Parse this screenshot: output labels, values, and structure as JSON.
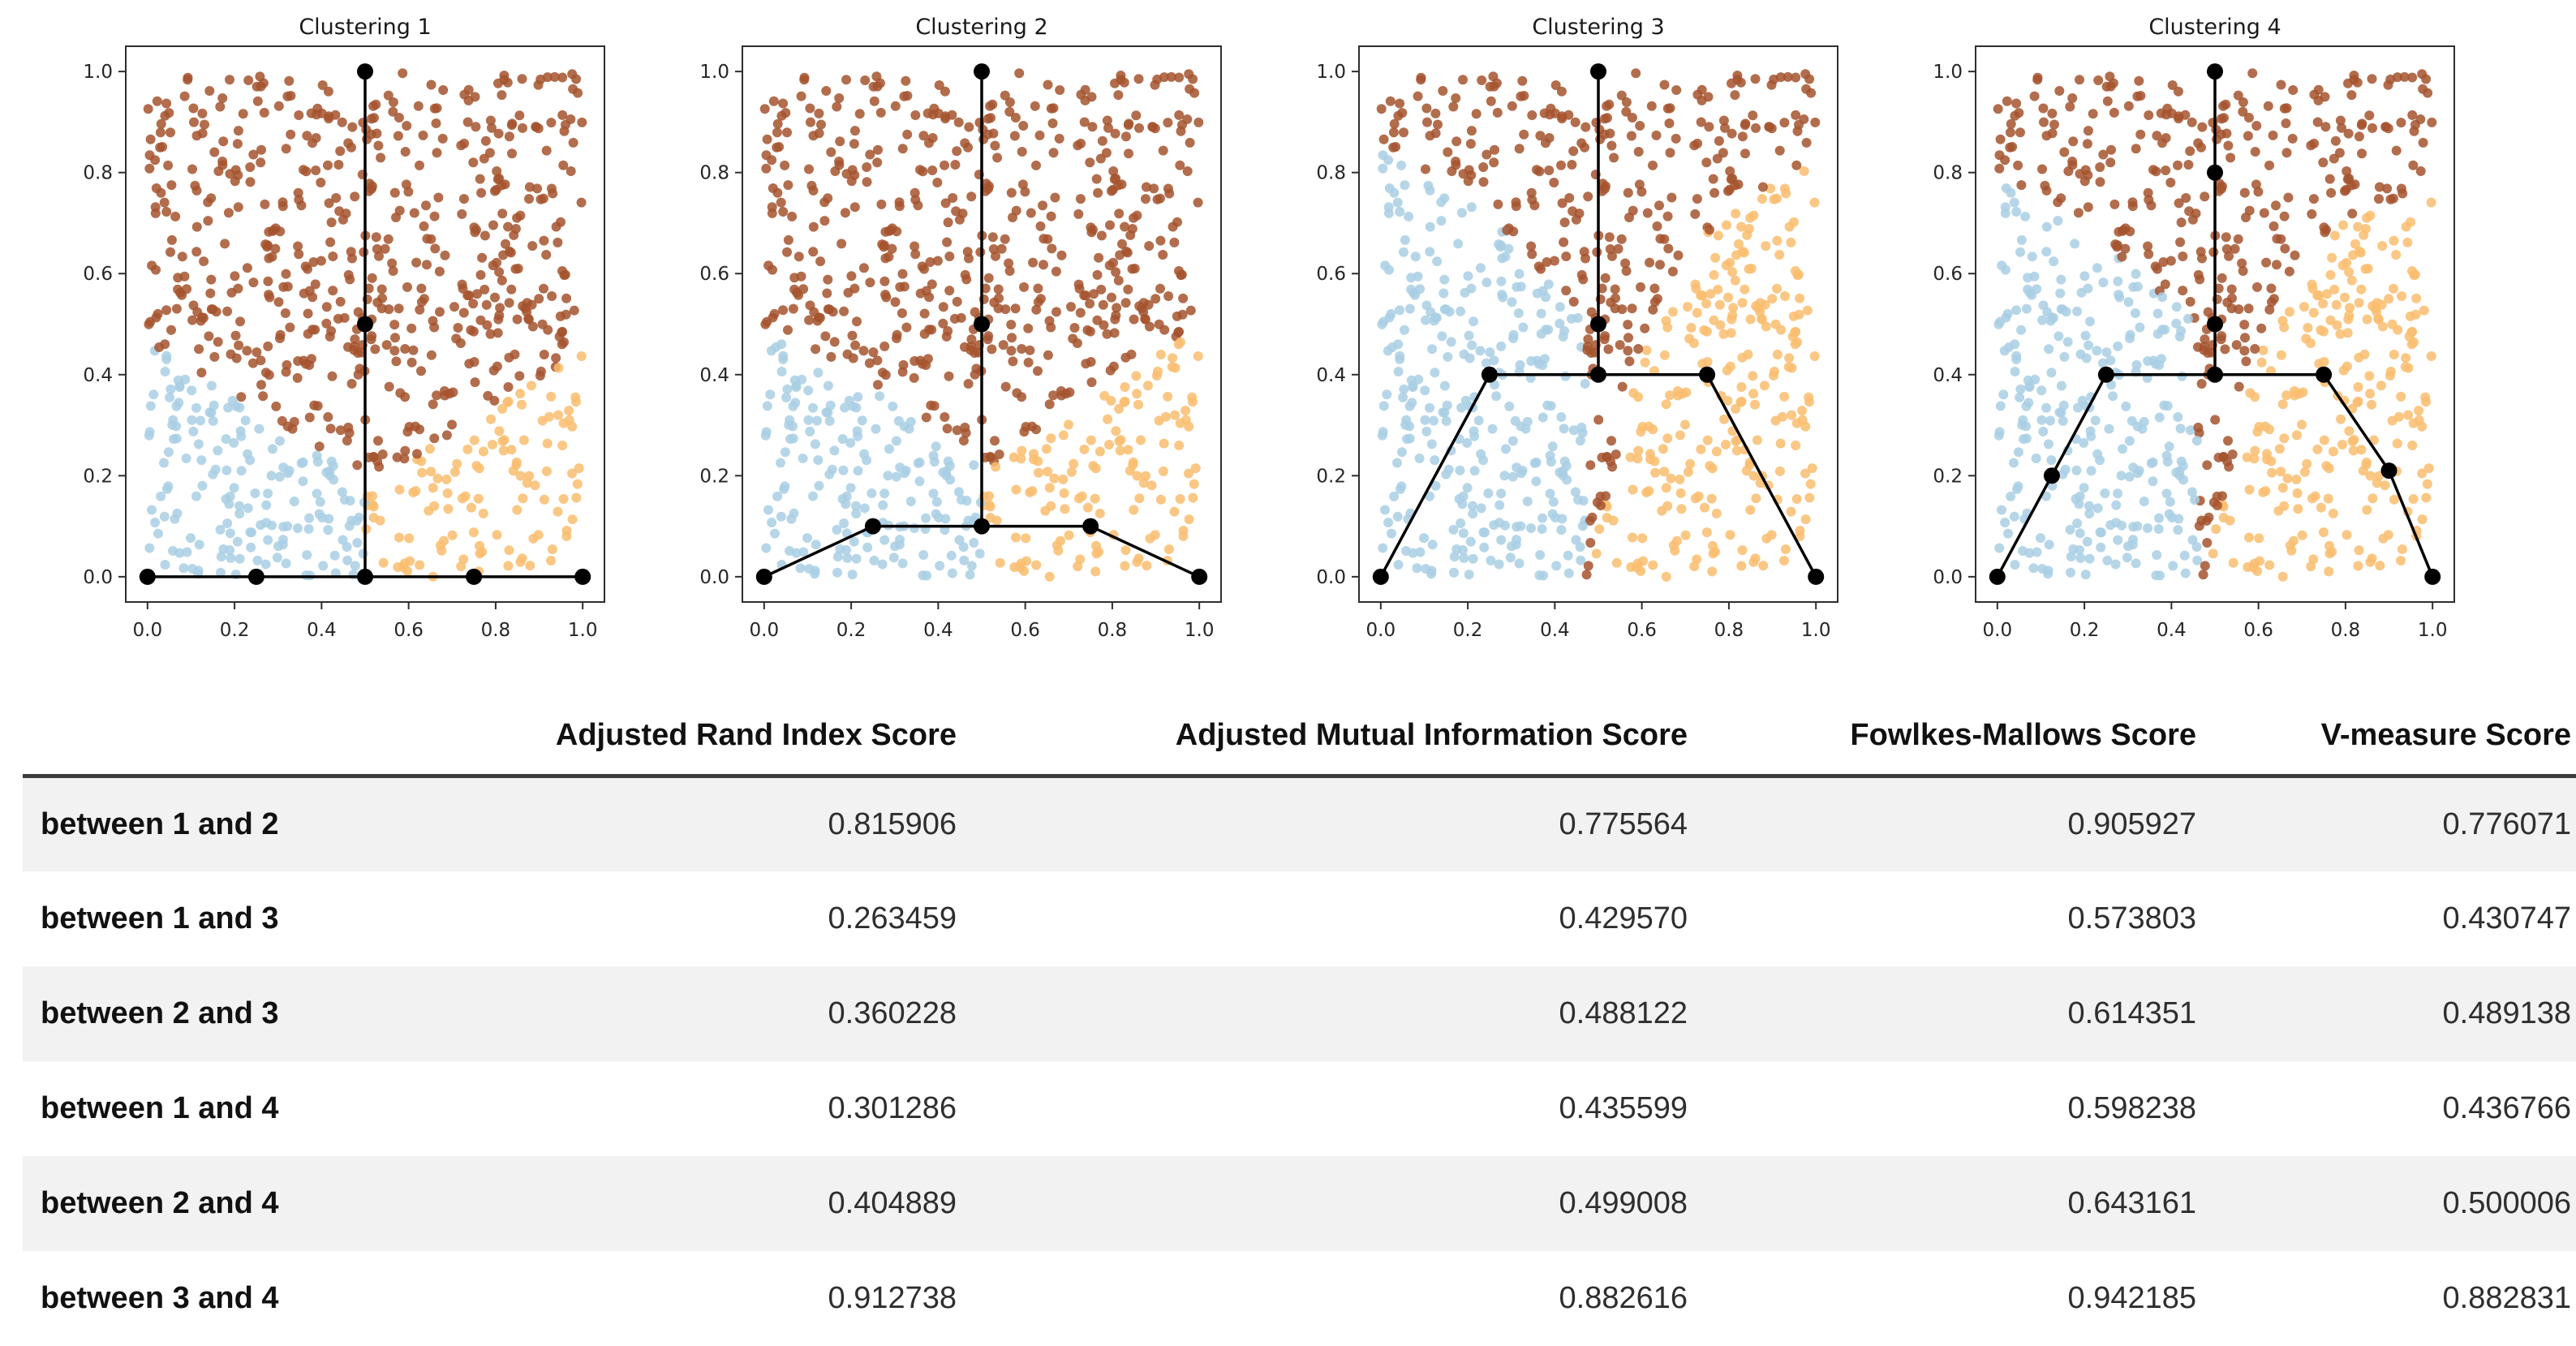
{
  "figure": {
    "bg": "#ffffff",
    "axis_color": "#2e2e2e",
    "tick_label_color": "#262626",
    "tree_color": "#000000",
    "point_colors": {
      "blue": "#a9cfe4",
      "brown": "#a5532e",
      "orange": "#f9bd6f"
    },
    "n_points": 820,
    "seed": 20,
    "axis_range": [
      -0.05,
      1.05
    ]
  },
  "chart_data": [
    {
      "type": "scatter",
      "title": "Clustering 1",
      "xlabel": "",
      "ylabel": "",
      "xticks": [
        0.0,
        0.2,
        0.4,
        0.6,
        0.8,
        1.0
      ],
      "yticks": [
        0.0,
        0.2,
        0.4,
        0.6,
        0.8,
        1.0
      ],
      "xlim": [
        -0.05,
        1.05
      ],
      "ylim": [
        -0.05,
        1.05
      ],
      "grid": false,
      "regions": {
        "blue": {
          "x_range": [
            0,
            0.5
          ],
          "top": [
            [
              0,
              0.46
            ],
            [
              0.5,
              0.2
            ]
          ]
        },
        "orange": {
          "x_range": [
            0.5,
            1
          ],
          "top": [
            [
              0.5,
              0.17
            ],
            [
              1,
              0.45
            ]
          ]
        }
      },
      "tree": {
        "edges": [
          [
            [
              0,
              0
            ],
            [
              0.25,
              0
            ],
            [
              0.5,
              0
            ],
            [
              0.75,
              0
            ],
            [
              1,
              0
            ]
          ],
          [
            [
              0.5,
              0
            ],
            [
              0.5,
              0.5
            ],
            [
              0.5,
              1
            ]
          ]
        ],
        "nodes": [
          [
            0,
            0
          ],
          [
            0.25,
            0
          ],
          [
            0.5,
            0
          ],
          [
            0.75,
            0
          ],
          [
            1,
            0
          ],
          [
            0.5,
            0.5
          ],
          [
            0.5,
            1
          ]
        ]
      }
    },
    {
      "type": "scatter",
      "title": "Clustering 2",
      "xlabel": "",
      "ylabel": "",
      "xticks": [
        0.0,
        0.2,
        0.4,
        0.6,
        0.8,
        1.0
      ],
      "yticks": [
        0.0,
        0.2,
        0.4,
        0.6,
        0.8,
        1.0
      ],
      "xlim": [
        -0.05,
        1.05
      ],
      "ylim": [
        -0.05,
        1.05
      ],
      "grid": false,
      "regions": {
        "blue": {
          "x_range": [
            0,
            0.5
          ],
          "top": [
            [
              0,
              0.5
            ],
            [
              0.5,
              0.24
            ]
          ]
        },
        "orange": {
          "x_range": [
            0.5,
            1
          ],
          "top": [
            [
              0.5,
              0.2
            ],
            [
              1,
              0.5
            ]
          ]
        }
      },
      "tree": {
        "edges": [
          [
            [
              0,
              0
            ],
            [
              0.25,
              0.1
            ],
            [
              0.5,
              0.1
            ],
            [
              0.75,
              0.1
            ],
            [
              1,
              0
            ]
          ],
          [
            [
              0.5,
              0.1
            ],
            [
              0.5,
              0.5
            ],
            [
              0.5,
              1
            ]
          ]
        ],
        "nodes": [
          [
            0,
            0
          ],
          [
            0.25,
            0.1
          ],
          [
            0.5,
            0.1
          ],
          [
            0.75,
            0.1
          ],
          [
            1,
            0
          ],
          [
            0.5,
            0.5
          ],
          [
            0.5,
            1
          ]
        ]
      }
    },
    {
      "type": "scatter",
      "title": "Clustering 3",
      "xlabel": "",
      "ylabel": "",
      "xticks": [
        0.0,
        0.2,
        0.4,
        0.6,
        0.8,
        1.0
      ],
      "yticks": [
        0.0,
        0.2,
        0.4,
        0.6,
        0.8,
        1.0
      ],
      "xlim": [
        -0.05,
        1.05
      ],
      "ylim": [
        -0.05,
        1.05
      ],
      "grid": false,
      "regions": {
        "blue": {
          "x_range": [
            0,
            0.47
          ],
          "top": [
            [
              0,
              0.85
            ],
            [
              0.3,
              0.68
            ],
            [
              0.47,
              0.5
            ]
          ]
        },
        "orange": {
          "x_range": [
            0.48,
            1
          ],
          "top": [
            [
              0.48,
              0.03
            ],
            [
              0.62,
              0.5
            ],
            [
              0.78,
              0.72
            ],
            [
              1,
              0.82
            ]
          ]
        }
      },
      "tree": {
        "edges": [
          [
            [
              0,
              0
            ],
            [
              0.25,
              0.4
            ],
            [
              0.5,
              0.4
            ],
            [
              0.75,
              0.4
            ],
            [
              1,
              0
            ]
          ],
          [
            [
              0.5,
              0.4
            ],
            [
              0.5,
              0.5
            ],
            [
              0.5,
              1
            ]
          ]
        ],
        "nodes": [
          [
            0,
            0
          ],
          [
            0.25,
            0.4
          ],
          [
            0.5,
            0.4
          ],
          [
            0.75,
            0.4
          ],
          [
            1,
            0
          ],
          [
            0.5,
            0.5
          ],
          [
            0.5,
            1
          ]
        ]
      }
    },
    {
      "type": "scatter",
      "title": "Clustering 4",
      "xlabel": "",
      "ylabel": "",
      "xticks": [
        0.0,
        0.2,
        0.4,
        0.6,
        0.8,
        1.0
      ],
      "yticks": [
        0.0,
        0.2,
        0.4,
        0.6,
        0.8,
        1.0
      ],
      "xlim": [
        -0.05,
        1.05
      ],
      "ylim": [
        -0.05,
        1.05
      ],
      "grid": false,
      "regions": {
        "blue": {
          "x_range": [
            0,
            0.46
          ],
          "top": [
            [
              0,
              0.78
            ],
            [
              0.3,
              0.62
            ],
            [
              0.46,
              0.5
            ]
          ]
        },
        "orange": {
          "x_range": [
            0.48,
            1
          ],
          "top": [
            [
              0.48,
              0.03
            ],
            [
              0.6,
              0.45
            ],
            [
              0.75,
              0.68
            ],
            [
              1,
              0.78
            ]
          ]
        }
      },
      "tree": {
        "edges": [
          [
            [
              0,
              0
            ],
            [
              0.125,
              0.2
            ],
            [
              0.25,
              0.4
            ],
            [
              0.5,
              0.4
            ],
            [
              0.75,
              0.4
            ],
            [
              0.9,
              0.21
            ],
            [
              1,
              0
            ]
          ],
          [
            [
              0.5,
              0.4
            ],
            [
              0.5,
              0.5
            ],
            [
              0.5,
              0.8
            ],
            [
              0.5,
              1
            ]
          ]
        ],
        "nodes": [
          [
            0,
            0
          ],
          [
            0.125,
            0.2
          ],
          [
            0.25,
            0.4
          ],
          [
            0.5,
            0.4
          ],
          [
            0.75,
            0.4
          ],
          [
            0.9,
            0.21
          ],
          [
            1,
            0
          ],
          [
            0.5,
            0.5
          ],
          [
            0.5,
            0.8
          ],
          [
            0.5,
            1
          ]
        ]
      }
    },
    {
      "type": "table",
      "columns": [
        "Adjusted Rand Index Score",
        "Adjusted Mutual Information Score",
        "Fowlkes-Mallows Score",
        "V-measure Score"
      ],
      "rows": [
        {
          "label": "between 1 and 2",
          "values": [
            "0.815906",
            "0.775564",
            "0.905927",
            "0.776071"
          ]
        },
        {
          "label": "between 1 and 3",
          "values": [
            "0.263459",
            "0.429570",
            "0.573803",
            "0.430747"
          ]
        },
        {
          "label": "between 2 and 3",
          "values": [
            "0.360228",
            "0.488122",
            "0.614351",
            "0.489138"
          ]
        },
        {
          "label": "between 1 and 4",
          "values": [
            "0.301286",
            "0.435599",
            "0.598238",
            "0.436766"
          ]
        },
        {
          "label": "between 2 and 4",
          "values": [
            "0.404889",
            "0.499008",
            "0.643161",
            "0.500006"
          ]
        },
        {
          "label": "between 3 and 4",
          "values": [
            "0.912738",
            "0.882616",
            "0.942185",
            "0.882831"
          ]
        }
      ]
    }
  ],
  "table": {
    "columns": [
      "Adjusted Rand Index Score",
      "Adjusted Mutual Information Score",
      "Fowlkes-Mallows Score",
      "V-measure Score"
    ],
    "rows": [
      {
        "label": "between 1 and 2",
        "values": [
          "0.815906",
          "0.775564",
          "0.905927",
          "0.776071"
        ]
      },
      {
        "label": "between 1 and 3",
        "values": [
          "0.263459",
          "0.429570",
          "0.573803",
          "0.430747"
        ]
      },
      {
        "label": "between 2 and 3",
        "values": [
          "0.360228",
          "0.488122",
          "0.614351",
          "0.489138"
        ]
      },
      {
        "label": "between 1 and 4",
        "values": [
          "0.301286",
          "0.435599",
          "0.598238",
          "0.436766"
        ]
      },
      {
        "label": "between 2 and 4",
        "values": [
          "0.404889",
          "0.499008",
          "0.643161",
          "0.500006"
        ]
      },
      {
        "label": "between 3 and 4",
        "values": [
          "0.912738",
          "0.882616",
          "0.942185",
          "0.882831"
        ]
      }
    ],
    "stripe_color": "#f2f2f2"
  }
}
